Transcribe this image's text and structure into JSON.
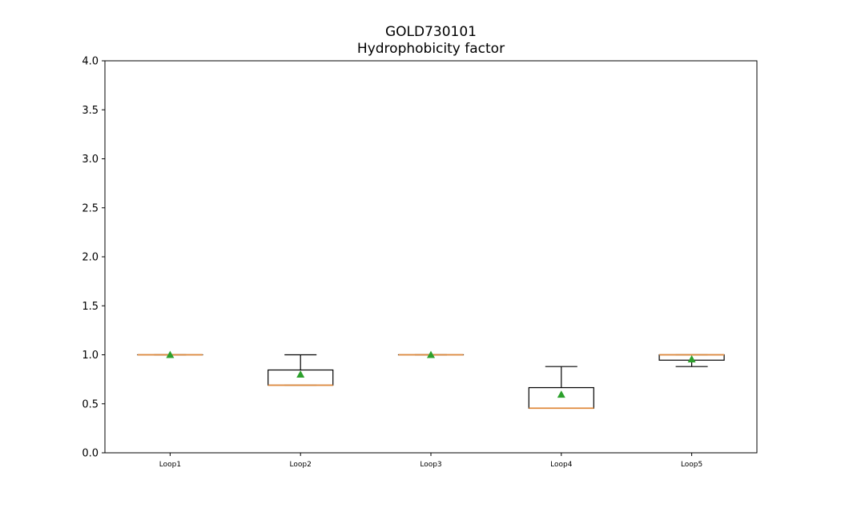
{
  "chart_data": {
    "type": "box",
    "title": "GOLD730101",
    "subtitle": "Hydrophobicity factor",
    "xlabel": "",
    "ylabel": "",
    "ylim": [
      0,
      4
    ],
    "yticks": [
      "0.0",
      "0.5",
      "1.0",
      "1.5",
      "2.0",
      "2.5",
      "3.0",
      "3.5",
      "4.0"
    ],
    "categories": [
      "Loop1",
      "Loop2",
      "Loop3",
      "Loop4",
      "Loop5"
    ],
    "boxes": [
      {
        "label": "Loop1",
        "whisker_low": 1.0,
        "q1": 1.0,
        "median": 1.0,
        "q3": 1.0,
        "whisker_high": 1.0,
        "mean": 1.0
      },
      {
        "label": "Loop2",
        "whisker_low": 0.69,
        "q1": 0.69,
        "median": 0.69,
        "q3": 0.845,
        "whisker_high": 1.0,
        "mean": 0.8
      },
      {
        "label": "Loop3",
        "whisker_low": 1.0,
        "q1": 1.0,
        "median": 1.0,
        "q3": 1.0,
        "whisker_high": 1.0,
        "mean": 1.0
      },
      {
        "label": "Loop4",
        "whisker_low": 0.455,
        "q1": 0.455,
        "median": 0.455,
        "q3": 0.665,
        "whisker_high": 0.88,
        "mean": 0.595
      },
      {
        "label": "Loop5",
        "whisker_low": 0.88,
        "q1": 0.945,
        "median": 1.0,
        "q3": 1.0,
        "whisker_high": 1.0,
        "mean": 0.955
      }
    ],
    "grid": false,
    "colors": {
      "box": "#000000",
      "median": "#e08a3c",
      "mean": "#2ca02c"
    }
  }
}
